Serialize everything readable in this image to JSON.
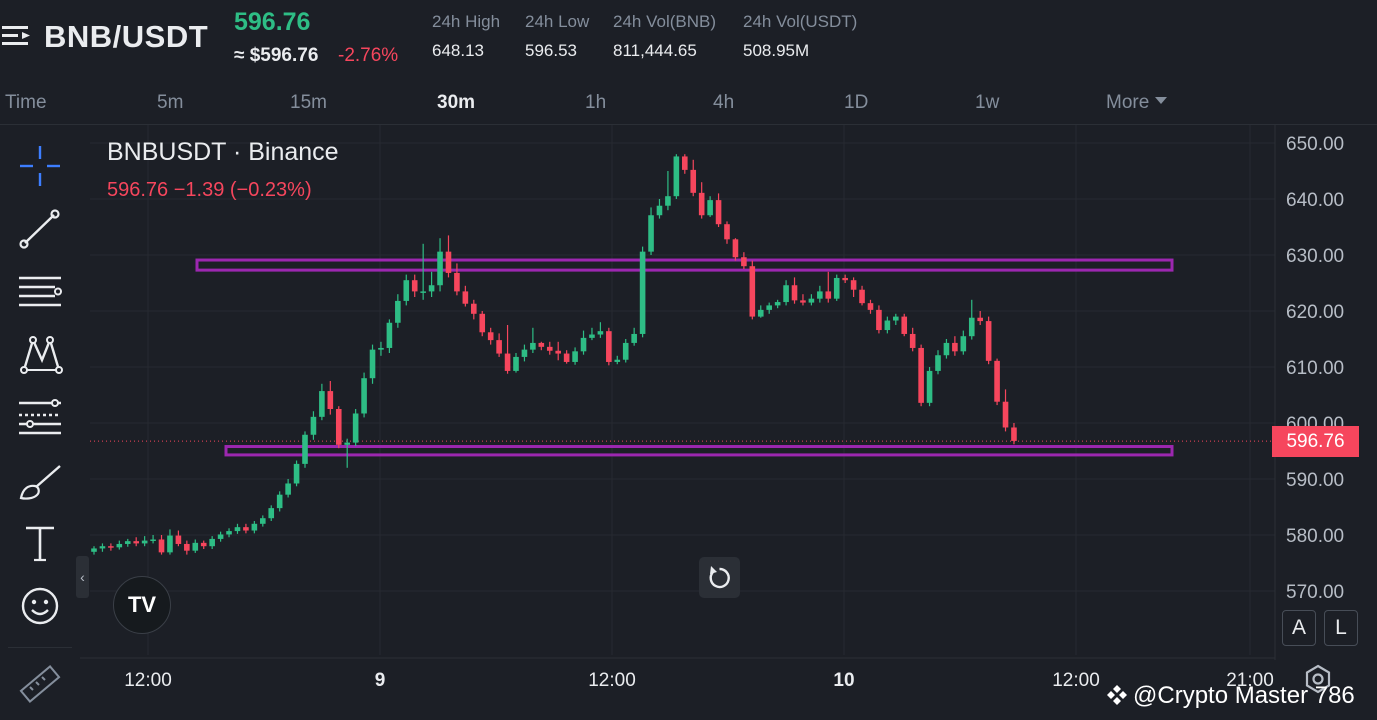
{
  "header": {
    "pair": "BNB/USDT",
    "last_price": "596.76",
    "approx_price": "≈ $596.76",
    "change_pct": "-2.76%",
    "stats": [
      {
        "label": "24h High",
        "value": "648.13"
      },
      {
        "label": "24h Low",
        "value": "596.53"
      },
      {
        "label": "24h Vol(BNB)",
        "value": "811,444.65"
      },
      {
        "label": "24h Vol(USDT)",
        "value": "508.95M"
      }
    ],
    "icons": {
      "menu": "menu-icon"
    }
  },
  "intervals": {
    "items": [
      "Time",
      "5m",
      "15m",
      "30m",
      "1h",
      "4h",
      "1D",
      "1w",
      "More"
    ],
    "active": "30m"
  },
  "chart": {
    "legend_title": "BNBUSDT · Binance",
    "legend_values": "596.76  −1.39 (−0.23%)",
    "current_price_tag": "596.76",
    "logo_text": "TV",
    "scale_buttons": [
      "A",
      "L"
    ],
    "watermark": "@Crypto Master 786",
    "colors": {
      "up": "#2ebd85",
      "down": "#f6465d",
      "zone": "#9c27b0",
      "background": "#1c1f26"
    }
  },
  "toolbar": {
    "tools": [
      "crosshair-icon",
      "trendline-icon",
      "horizontal-lines-icon",
      "pattern-icon",
      "prediction-icon",
      "brush-icon",
      "text-icon",
      "emoji-icon",
      "ruler-icon"
    ]
  },
  "chart_data": {
    "type": "candlestick",
    "price_axis": {
      "ticks": [
        "650.00",
        "640.00",
        "630.00",
        "620.00",
        "610.00",
        "600.00",
        "590.00",
        "580.00",
        "570.00"
      ],
      "range": [
        564,
        652
      ]
    },
    "time_axis": {
      "ticks": [
        "12:00",
        "9",
        "12:00",
        "10",
        "12:00",
        "21:00"
      ]
    },
    "current_price": 596.76,
    "zones": [
      {
        "from": 627.3,
        "to": 629.1
      },
      {
        "from": 594.3,
        "to": 595.8
      }
    ],
    "candles": [
      [
        577,
        577.6,
        576.5,
        578
      ],
      [
        577.6,
        578.0,
        577.0,
        578.5
      ],
      [
        578.0,
        577.8,
        577.2,
        578.5
      ],
      [
        577.8,
        578.4,
        577.4,
        579
      ],
      [
        578.4,
        578.9,
        577.9,
        579.3
      ],
      [
        578.9,
        578.5,
        578.0,
        579.6
      ],
      [
        578.5,
        579.0,
        578.0,
        579.8
      ],
      [
        579.0,
        579.2,
        578.5,
        580
      ],
      [
        579.2,
        576.9,
        576.5,
        580
      ],
      [
        576.9,
        579.9,
        576.5,
        581
      ],
      [
        579.9,
        578.4,
        578.0,
        580.8
      ],
      [
        578.4,
        577.2,
        576.5,
        579
      ],
      [
        577.2,
        578.6,
        576.8,
        579.2
      ],
      [
        578.6,
        578.0,
        577.5,
        579
      ],
      [
        578.0,
        579.3,
        577.5,
        579.8
      ],
      [
        579.3,
        580.1,
        578.8,
        580.6
      ],
      [
        580.1,
        580.7,
        579.6,
        581.2
      ],
      [
        580.7,
        581.4,
        580.2,
        582
      ],
      [
        581.4,
        580.8,
        580.3,
        582
      ],
      [
        580.8,
        582.0,
        580.3,
        582.5
      ],
      [
        582.0,
        583.0,
        581.5,
        583.5
      ],
      [
        583.0,
        584.8,
        582.5,
        585.3
      ],
      [
        584.8,
        587.2,
        584.2,
        587.8
      ],
      [
        587.2,
        589.2,
        586.7,
        590
      ],
      [
        589.2,
        592.7,
        588.7,
        593.3
      ],
      [
        592.7,
        597.9,
        592.0,
        598.5
      ],
      [
        597.9,
        601.1,
        597.0,
        602.1
      ],
      [
        601.1,
        605.7,
        600.5,
        607.0
      ],
      [
        605.7,
        602.5,
        601.5,
        607.5
      ],
      [
        602.5,
        596.1,
        595.5,
        603.0
      ],
      [
        596.1,
        596.5,
        592.0,
        597.2
      ],
      [
        596.5,
        601.7,
        595.9,
        602.5
      ],
      [
        601.7,
        608.0,
        601.0,
        609.0
      ],
      [
        608.0,
        613.1,
        607.0,
        614.0
      ],
      [
        613.1,
        613.4,
        612.0,
        614.5
      ],
      [
        613.4,
        617.9,
        612.5,
        618.5
      ],
      [
        617.9,
        621.8,
        617.0,
        623.0
      ],
      [
        621.8,
        625.5,
        621.0,
        626.5
      ],
      [
        625.5,
        623.5,
        622.5,
        626.5
      ],
      [
        623.5,
        623.5,
        622.0,
        632.0
      ],
      [
        623.5,
        624.6,
        622.5,
        627.0
      ],
      [
        624.6,
        630.6,
        623.5,
        633.0
      ],
      [
        630.6,
        626.8,
        626.0,
        633.5
      ],
      [
        626.8,
        623.5,
        622.8,
        628.5
      ],
      [
        623.5,
        621.3,
        620.8,
        624.5
      ],
      [
        621.3,
        619.5,
        618.5,
        622.0
      ],
      [
        619.5,
        616.2,
        615.5,
        620.0
      ],
      [
        616.2,
        614.8,
        614.0,
        617.0
      ],
      [
        614.8,
        612.4,
        611.8,
        616.0
      ],
      [
        612.4,
        609.3,
        608.8,
        617.5
      ],
      [
        609.3,
        611.8,
        609.0,
        612.5
      ],
      [
        611.8,
        613.1,
        611.0,
        614.0
      ],
      [
        613.1,
        614.3,
        612.5,
        617.0
      ],
      [
        614.3,
        613.6,
        613.0,
        614.5
      ],
      [
        613.6,
        612.9,
        612.2,
        614.5
      ],
      [
        612.9,
        612.4,
        611.2,
        614.5
      ],
      [
        612.4,
        610.9,
        610.6,
        613.0
      ],
      [
        610.9,
        612.8,
        610.4,
        613.5
      ],
      [
        612.8,
        615.2,
        612.2,
        616.5
      ],
      [
        615.2,
        615.8,
        614.8,
        617.0
      ],
      [
        615.8,
        616.4,
        615.2,
        618.0
      ],
      [
        616.4,
        610.9,
        610.3,
        617.0
      ],
      [
        610.9,
        611.3,
        610.5,
        612.0
      ],
      [
        611.3,
        614.3,
        610.8,
        615.0
      ],
      [
        614.3,
        615.9,
        613.8,
        617.0
      ],
      [
        615.9,
        630.6,
        615.3,
        631.5
      ],
      [
        630.6,
        637.1,
        630.0,
        638.5
      ],
      [
        637.1,
        638.8,
        636.5,
        640.0
      ],
      [
        638.8,
        640.5,
        638.0,
        645.0
      ],
      [
        640.5,
        647.6,
        640.0,
        648.0
      ],
      [
        647.6,
        645.2,
        644.5,
        648.0
      ],
      [
        645.2,
        641.1,
        640.5,
        647.0
      ],
      [
        641.1,
        637.1,
        636.5,
        643.0
      ],
      [
        637.1,
        639.8,
        636.8,
        640.5
      ],
      [
        639.8,
        635.5,
        635.0,
        641.0
      ],
      [
        635.5,
        632.8,
        632.0,
        636.0
      ],
      [
        632.8,
        629.6,
        629.0,
        633.0
      ],
      [
        629.6,
        628.0,
        627.5,
        630.5
      ],
      [
        628.0,
        619.0,
        618.5,
        629.0
      ],
      [
        619.0,
        620.2,
        618.8,
        621.0
      ],
      [
        620.2,
        621.0,
        619.5,
        621.5
      ],
      [
        621.0,
        621.6,
        620.5,
        622.0
      ],
      [
        621.6,
        624.6,
        621.0,
        625.5
      ],
      [
        624.6,
        621.9,
        621.3,
        626.0
      ],
      [
        621.9,
        621.5,
        621.0,
        623.0
      ],
      [
        621.5,
        622.2,
        621.0,
        623.0
      ],
      [
        622.2,
        623.5,
        621.5,
        624.5
      ],
      [
        623.5,
        622.2,
        621.5,
        627.0
      ],
      [
        622.2,
        625.9,
        621.8,
        626.5
      ],
      [
        625.9,
        625.5,
        625.0,
        626.5
      ],
      [
        625.5,
        623.8,
        622.5,
        626.0
      ],
      [
        623.8,
        621.4,
        621.0,
        624.5
      ],
      [
        621.4,
        620.2,
        619.5,
        622.0
      ],
      [
        620.2,
        616.6,
        616.0,
        621.0
      ],
      [
        616.6,
        618.3,
        616.0,
        619.0
      ],
      [
        618.3,
        619.0,
        617.5,
        619.5
      ],
      [
        619.0,
        615.9,
        615.5,
        619.5
      ],
      [
        615.9,
        613.4,
        612.8,
        617.0
      ],
      [
        613.4,
        603.6,
        603.0,
        614.0
      ],
      [
        603.6,
        609.3,
        603.0,
        610.0
      ],
      [
        609.3,
        612.1,
        608.7,
        613.0
      ],
      [
        612.1,
        614.3,
        611.5,
        615.0
      ],
      [
        614.3,
        612.8,
        612.0,
        615.5
      ],
      [
        612.8,
        615.5,
        612.2,
        616.5
      ],
      [
        615.5,
        618.8,
        614.9,
        622.0
      ],
      [
        618.8,
        618.2,
        617.5,
        620.0
      ],
      [
        618.2,
        611.1,
        610.5,
        619.0
      ],
      [
        611.1,
        603.8,
        603.2,
        611.5
      ],
      [
        603.8,
        599.2,
        598.5,
        606.0
      ],
      [
        599.2,
        596.8,
        596.2,
        600.0
      ]
    ]
  }
}
